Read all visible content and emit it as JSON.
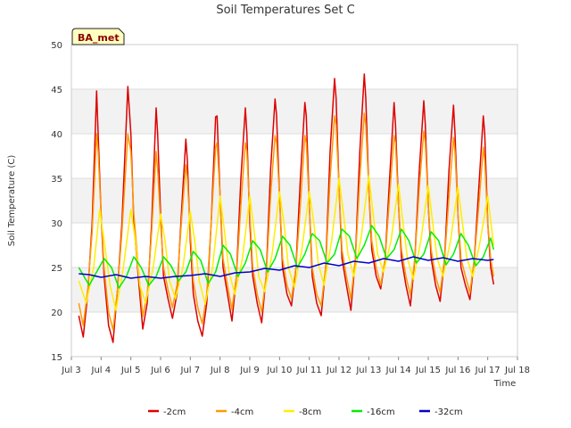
{
  "chart_data": {
    "type": "line",
    "title": "Soil Temperatures Set C",
    "xlabel": "Time",
    "ylabel": "Soil Temperature (C)",
    "badge": "BA_met",
    "xlim": [
      3.0,
      18.0
    ],
    "ylim": [
      15,
      50
    ],
    "x_ticks": [
      {
        "value": 3,
        "label": "Jul 3"
      },
      {
        "value": 4,
        "label": "Jul 4"
      },
      {
        "value": 5,
        "label": "Jul 5"
      },
      {
        "value": 6,
        "label": "Jul 6"
      },
      {
        "value": 7,
        "label": "Jul 7"
      },
      {
        "value": 8,
        "label": "Jul 8"
      },
      {
        "value": 9,
        "label": "Jul 9"
      },
      {
        "value": 10,
        "label": "Jul 10"
      },
      {
        "value": 11,
        "label": "Jul 11"
      },
      {
        "value": 12,
        "label": "Jul 12"
      },
      {
        "value": 13,
        "label": "Jul 13"
      },
      {
        "value": 14,
        "label": "Jul 14"
      },
      {
        "value": 15,
        "label": "Jul 15"
      },
      {
        "value": 16,
        "label": "Jul 16"
      },
      {
        "value": 17,
        "label": "Jul 17"
      },
      {
        "value": 18,
        "label": "Jul 18"
      }
    ],
    "y_ticks": [
      15,
      20,
      25,
      30,
      35,
      40,
      45,
      50
    ],
    "grid": true,
    "legend_position": "bottom",
    "series": [
      {
        "name": "-2cm",
        "color": "#dd0000",
        "x": [
          3.25,
          3.4,
          3.55,
          3.7,
          3.85,
          3.9,
          4.0,
          4.1,
          4.25,
          4.4,
          4.55,
          4.7,
          4.9,
          5.0,
          5.1,
          5.25,
          5.4,
          5.55,
          5.7,
          5.85,
          5.9,
          6.0,
          6.1,
          6.25,
          6.4,
          6.55,
          6.7,
          6.85,
          6.9,
          7.0,
          7.1,
          7.25,
          7.4,
          7.55,
          7.7,
          7.85,
          7.9,
          8.0,
          8.1,
          8.25,
          8.4,
          8.55,
          8.7,
          8.85,
          8.9,
          9.0,
          9.1,
          9.25,
          9.4,
          9.55,
          9.7,
          9.85,
          9.9,
          10.0,
          10.1,
          10.25,
          10.4,
          10.55,
          10.7,
          10.85,
          10.9,
          11.0,
          11.1,
          11.25,
          11.4,
          11.55,
          11.7,
          11.85,
          11.9,
          12.0,
          12.1,
          12.25,
          12.4,
          12.55,
          12.7,
          12.85,
          12.9,
          13.0,
          13.1,
          13.25,
          13.4,
          13.55,
          13.7,
          13.85,
          13.9,
          14.0,
          14.1,
          14.25,
          14.4,
          14.55,
          14.7,
          14.85,
          14.9,
          15.0,
          15.1,
          15.25,
          15.4,
          15.55,
          15.7,
          15.85,
          15.9,
          16.0,
          16.1,
          16.25,
          16.4,
          16.55,
          16.7,
          16.85,
          16.9,
          17.0,
          17.1,
          17.2
        ],
        "y": [
          19.6,
          17.2,
          22.0,
          30.0,
          44.8,
          40.0,
          31.0,
          24.0,
          18.5,
          16.6,
          22.5,
          30.0,
          45.3,
          40.0,
          30.0,
          24.0,
          18.1,
          21.0,
          30.0,
          42.9,
          40.0,
          31.0,
          24.0,
          21.5,
          19.3,
          22.0,
          31.0,
          39.4,
          37.0,
          28.0,
          22.0,
          19.0,
          17.3,
          21.0,
          30.0,
          41.9,
          42.0,
          33.0,
          25.0,
          22.0,
          19.0,
          24.0,
          35.0,
          42.9,
          40.0,
          30.0,
          24.0,
          21.0,
          18.8,
          24.0,
          36.0,
          43.9,
          42.0,
          33.0,
          25.0,
          22.0,
          20.7,
          25.0,
          35.0,
          43.5,
          42.0,
          32.0,
          24.0,
          21.0,
          19.6,
          25.0,
          38.0,
          46.2,
          44.0,
          34.0,
          26.0,
          23.0,
          20.2,
          26.0,
          38.0,
          46.7,
          44.0,
          34.0,
          27.0,
          24.0,
          22.6,
          26.0,
          35.0,
          43.5,
          41.0,
          32.0,
          26.0,
          23.0,
          20.7,
          26.0,
          36.0,
          43.7,
          41.0,
          32.0,
          26.0,
          23.0,
          21.2,
          26.0,
          36.0,
          43.2,
          40.0,
          31.0,
          25.0,
          23.0,
          21.4,
          26.0,
          34.0,
          42.0,
          40.0,
          30.0,
          25.0,
          23.1
        ]
      },
      {
        "name": "-4cm",
        "color": "#ff9900",
        "x": [
          3.25,
          3.4,
          3.55,
          3.7,
          3.85,
          3.9,
          4.0,
          4.1,
          4.25,
          4.4,
          4.55,
          4.7,
          4.9,
          5.0,
          5.1,
          5.25,
          5.4,
          5.55,
          5.7,
          5.85,
          5.9,
          6.0,
          6.1,
          6.25,
          6.4,
          6.55,
          6.7,
          6.85,
          6.9,
          7.0,
          7.1,
          7.25,
          7.4,
          7.55,
          7.7,
          7.85,
          7.9,
          8.0,
          8.1,
          8.25,
          8.4,
          8.55,
          8.7,
          8.85,
          8.9,
          9.0,
          9.1,
          9.25,
          9.4,
          9.55,
          9.7,
          9.85,
          9.9,
          10.0,
          10.1,
          10.25,
          10.4,
          10.55,
          10.7,
          10.85,
          10.9,
          11.0,
          11.1,
          11.25,
          11.4,
          11.55,
          11.7,
          11.85,
          11.9,
          12.0,
          12.1,
          12.25,
          12.4,
          12.55,
          12.7,
          12.85,
          12.9,
          13.0,
          13.1,
          13.25,
          13.4,
          13.55,
          13.7,
          13.85,
          13.9,
          14.0,
          14.1,
          14.25,
          14.4,
          14.55,
          14.7,
          14.85,
          14.9,
          15.0,
          15.1,
          15.25,
          15.4,
          15.55,
          15.7,
          15.85,
          15.9,
          16.0,
          16.1,
          16.25,
          16.4,
          16.55,
          16.7,
          16.85,
          16.9,
          17.0,
          17.1,
          17.2
        ],
        "y": [
          21.0,
          18.5,
          22.5,
          29.0,
          40.0,
          38.0,
          31.0,
          25.0,
          20.0,
          18.0,
          22.5,
          29.0,
          40.0,
          38.0,
          31.0,
          25.0,
          19.5,
          22.0,
          29.0,
          38.0,
          36.0,
          30.0,
          25.0,
          22.5,
          20.5,
          23.0,
          30.0,
          36.5,
          35.0,
          29.0,
          23.5,
          20.5,
          18.7,
          22.0,
          30.0,
          38.5,
          39.0,
          33.0,
          26.0,
          23.0,
          20.3,
          24.0,
          32.0,
          39.0,
          38.0,
          31.0,
          25.0,
          22.0,
          20.0,
          24.0,
          33.0,
          39.8,
          39.0,
          33.0,
          26.0,
          23.0,
          21.5,
          25.0,
          32.0,
          39.8,
          39.0,
          32.0,
          25.0,
          22.0,
          20.7,
          25.0,
          35.0,
          42.0,
          41.0,
          34.0,
          27.0,
          24.0,
          21.5,
          26.0,
          35.0,
          42.3,
          41.0,
          34.0,
          28.0,
          25.0,
          23.0,
          26.0,
          33.0,
          39.8,
          39.0,
          32.0,
          27.0,
          24.0,
          21.9,
          26.0,
          34.0,
          40.3,
          39.0,
          32.0,
          27.0,
          24.0,
          22.2,
          26.0,
          33.0,
          39.6,
          38.0,
          31.0,
          26.0,
          24.0,
          22.2,
          26.0,
          32.0,
          38.5,
          37.0,
          30.0,
          26.0,
          24.0
        ]
      },
      {
        "name": "-8cm",
        "color": "#ffee00",
        "x": [
          3.25,
          3.5,
          3.75,
          3.95,
          4.1,
          4.3,
          4.5,
          4.75,
          5.0,
          5.15,
          5.3,
          5.5,
          5.75,
          6.0,
          6.15,
          6.3,
          6.5,
          6.75,
          7.0,
          7.15,
          7.3,
          7.5,
          7.75,
          8.0,
          8.15,
          8.3,
          8.5,
          8.75,
          9.0,
          9.15,
          9.3,
          9.5,
          9.75,
          10.0,
          10.15,
          10.3,
          10.5,
          10.75,
          11.0,
          11.15,
          11.3,
          11.5,
          11.75,
          12.0,
          12.15,
          12.3,
          12.5,
          12.75,
          13.0,
          13.15,
          13.3,
          13.5,
          13.75,
          14.0,
          14.15,
          14.3,
          14.5,
          14.75,
          15.0,
          15.15,
          15.3,
          15.5,
          15.75,
          16.0,
          16.15,
          16.3,
          16.5,
          16.75,
          17.0,
          17.2
        ],
        "y": [
          23.5,
          21.0,
          25.0,
          31.5,
          28.0,
          23.0,
          20.2,
          25.0,
          31.5,
          28.0,
          23.0,
          21.0,
          25.0,
          31.0,
          28.0,
          23.5,
          21.5,
          25.0,
          31.3,
          28.0,
          23.5,
          20.9,
          25.0,
          33.0,
          29.0,
          24.5,
          22.0,
          26.0,
          33.0,
          29.0,
          24.0,
          22.3,
          26.5,
          33.5,
          30.0,
          25.0,
          22.8,
          27.0,
          33.5,
          30.0,
          25.5,
          23.0,
          28.0,
          35.0,
          31.0,
          26.5,
          24.0,
          28.5,
          35.3,
          31.0,
          26.5,
          24.5,
          28.0,
          34.3,
          30.0,
          26.0,
          23.7,
          28.0,
          34.2,
          30.0,
          26.0,
          24.0,
          28.0,
          34.0,
          30.0,
          26.0,
          24.0,
          28.0,
          33.0,
          27.5
        ]
      },
      {
        "name": "-16cm",
        "color": "#00ee00",
        "x": [
          3.25,
          3.6,
          3.85,
          4.1,
          4.35,
          4.6,
          4.85,
          5.1,
          5.35,
          5.6,
          5.85,
          6.1,
          6.35,
          6.6,
          6.85,
          7.1,
          7.35,
          7.6,
          7.85,
          8.1,
          8.35,
          8.6,
          8.85,
          9.1,
          9.35,
          9.6,
          9.85,
          10.1,
          10.35,
          10.6,
          10.85,
          11.1,
          11.35,
          11.6,
          11.85,
          12.1,
          12.35,
          12.6,
          12.85,
          13.1,
          13.35,
          13.6,
          13.85,
          14.1,
          14.35,
          14.6,
          14.85,
          15.1,
          15.35,
          15.6,
          15.85,
          16.1,
          16.35,
          16.6,
          16.85,
          17.1,
          17.2
        ],
        "y": [
          25.0,
          23.0,
          24.5,
          26.0,
          25.0,
          22.7,
          24.0,
          26.2,
          25.0,
          23.0,
          24.0,
          26.2,
          25.2,
          23.5,
          24.5,
          26.8,
          25.8,
          23.2,
          24.5,
          27.5,
          26.5,
          24.0,
          25.5,
          28.0,
          27.0,
          24.5,
          26.0,
          28.5,
          27.5,
          25.0,
          26.5,
          28.8,
          28.0,
          25.5,
          26.5,
          29.3,
          28.5,
          26.0,
          27.5,
          29.7,
          28.5,
          26.0,
          27.0,
          29.3,
          28.0,
          25.5,
          26.5,
          29.0,
          28.0,
          25.3,
          26.5,
          28.8,
          27.5,
          25.2,
          26.2,
          28.3,
          27.0
        ]
      },
      {
        "name": "-32cm",
        "color": "#0000cc",
        "x": [
          3.25,
          3.6,
          4.0,
          4.5,
          5.0,
          5.5,
          6.0,
          6.5,
          7.0,
          7.5,
          8.0,
          8.5,
          9.0,
          9.5,
          10.0,
          10.5,
          11.0,
          11.5,
          12.0,
          12.5,
          13.0,
          13.5,
          14.0,
          14.5,
          15.0,
          15.5,
          16.0,
          16.5,
          17.0,
          17.2
        ],
        "y": [
          24.3,
          24.2,
          23.9,
          24.2,
          23.8,
          24.0,
          23.8,
          24.0,
          24.1,
          24.3,
          24.0,
          24.4,
          24.5,
          24.9,
          24.7,
          25.2,
          25.0,
          25.5,
          25.2,
          25.7,
          25.5,
          26.0,
          25.7,
          26.2,
          25.8,
          26.1,
          25.7,
          26.0,
          25.8,
          25.9
        ]
      }
    ]
  }
}
